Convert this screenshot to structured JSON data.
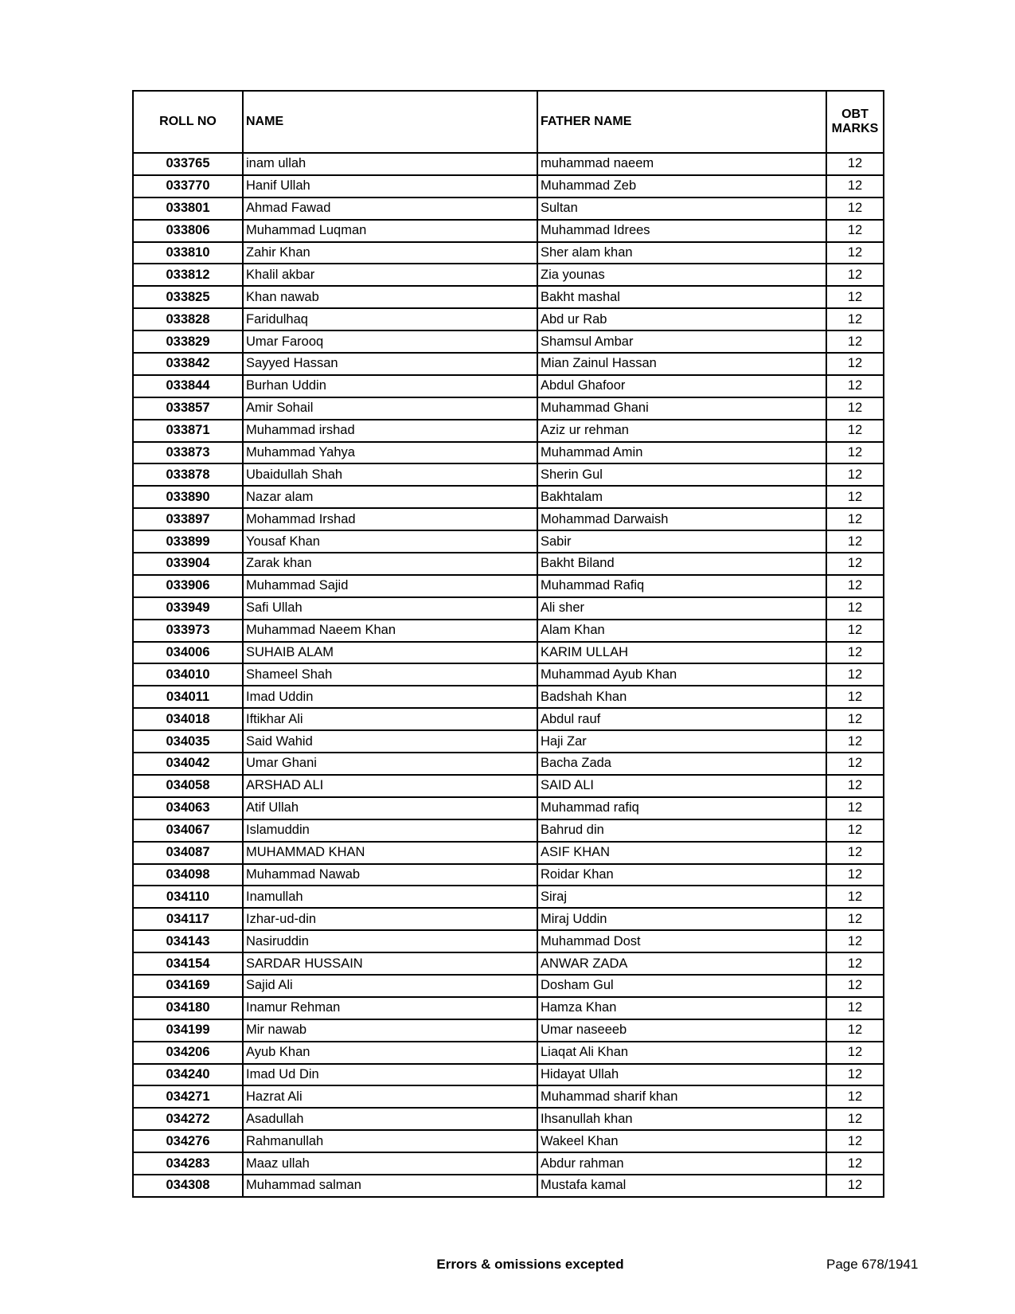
{
  "table": {
    "headers": {
      "roll_no": "ROLL NO",
      "name": "NAME",
      "father_name": "FATHER NAME",
      "obt_marks_line1": "OBT",
      "obt_marks_line2": "MARKS"
    },
    "rows": [
      [
        "033765",
        "inam ullah",
        "muhammad naeem",
        "12"
      ],
      [
        "033770",
        "Hanif Ullah",
        "Muhammad Zeb",
        "12"
      ],
      [
        "033801",
        "Ahmad Fawad",
        "Sultan",
        "12"
      ],
      [
        "033806",
        "Muhammad Luqman",
        "Muhammad Idrees",
        "12"
      ],
      [
        "033810",
        "Zahir Khan",
        "Sher alam khan",
        "12"
      ],
      [
        "033812",
        "Khalil akbar",
        "Zia younas",
        "12"
      ],
      [
        "033825",
        "Khan nawab",
        "Bakht mashal",
        "12"
      ],
      [
        "033828",
        "Faridulhaq",
        "Abd ur Rab",
        "12"
      ],
      [
        "033829",
        "Umar Farooq",
        "Shamsul Ambar",
        "12"
      ],
      [
        "033842",
        "Sayyed Hassan",
        "Mian Zainul Hassan",
        "12"
      ],
      [
        "033844",
        "Burhan Uddin",
        "Abdul Ghafoor",
        "12"
      ],
      [
        "033857",
        "Amir Sohail",
        "Muhammad Ghani",
        "12"
      ],
      [
        "033871",
        "Muhammad irshad",
        "Aziz ur rehman",
        "12"
      ],
      [
        "033873",
        "Muhammad Yahya",
        "Muhammad Amin",
        "12"
      ],
      [
        "033878",
        "Ubaidullah Shah",
        "Sherin Gul",
        "12"
      ],
      [
        "033890",
        "Nazar alam",
        "Bakhtalam",
        "12"
      ],
      [
        "033897",
        "Mohammad Irshad",
        "Mohammad Darwaish",
        "12"
      ],
      [
        "033899",
        "Yousaf Khan",
        "Sabir",
        "12"
      ],
      [
        "033904",
        "Zarak khan",
        "Bakht Biland",
        "12"
      ],
      [
        "033906",
        "Muhammad Sajid",
        "Muhammad Rafiq",
        "12"
      ],
      [
        "033949",
        "Safi Ullah",
        "Ali sher",
        "12"
      ],
      [
        "033973",
        "Muhammad Naeem Khan",
        "Alam Khan",
        "12"
      ],
      [
        "034006",
        "SUHAIB ALAM",
        "KARIM ULLAH",
        "12"
      ],
      [
        "034010",
        "Shameel Shah",
        "Muhammad Ayub Khan",
        "12"
      ],
      [
        "034011",
        "Imad Uddin",
        "Badshah Khan",
        "12"
      ],
      [
        "034018",
        "Iftikhar Ali",
        "Abdul rauf",
        "12"
      ],
      [
        "034035",
        "Said Wahid",
        "Haji Zar",
        "12"
      ],
      [
        "034042",
        "Umar Ghani",
        "Bacha Zada",
        "12"
      ],
      [
        "034058",
        "ARSHAD ALI",
        "SAID ALI",
        "12"
      ],
      [
        "034063",
        "Atif Ullah",
        "Muhammad rafiq",
        "12"
      ],
      [
        "034067",
        "Islamuddin",
        "Bahrud din",
        "12"
      ],
      [
        "034087",
        "MUHAMMAD KHAN",
        "ASIF KHAN",
        "12"
      ],
      [
        "034098",
        "Muhammad Nawab",
        "Roidar Khan",
        "12"
      ],
      [
        "034110",
        "Inamullah",
        "Siraj",
        "12"
      ],
      [
        "034117",
        "Izhar-ud-din",
        "Miraj Uddin",
        "12"
      ],
      [
        "034143",
        "Nasiruddin",
        "Muhammad Dost",
        "12"
      ],
      [
        "034154",
        "SARDAR HUSSAIN",
        "ANWAR ZADA",
        "12"
      ],
      [
        "034169",
        "Sajid Ali",
        "Dosham Gul",
        "12"
      ],
      [
        "034180",
        "Inamur Rehman",
        "Hamza Khan",
        "12"
      ],
      [
        "034199",
        "Mir nawab",
        "Umar naseeeb",
        "12"
      ],
      [
        "034206",
        "Ayub Khan",
        "Liaqat Ali Khan",
        "12"
      ],
      [
        "034240",
        "Imad Ud Din",
        "Hidayat Ullah",
        "12"
      ],
      [
        "034271",
        "Hazrat Ali",
        "Muhammad sharif khan",
        "12"
      ],
      [
        "034272",
        "Asadullah",
        "Ihsanullah khan",
        "12"
      ],
      [
        "034276",
        "Rahmanullah",
        "Wakeel Khan",
        "12"
      ],
      [
        "034283",
        "Maaz ullah",
        "Abdur rahman",
        "12"
      ],
      [
        "034308",
        "Muhammad salman",
        "Mustafa kamal",
        "12"
      ]
    ]
  },
  "footer": {
    "note": "Errors & omissions excepted",
    "page": "Page 678/1941"
  }
}
